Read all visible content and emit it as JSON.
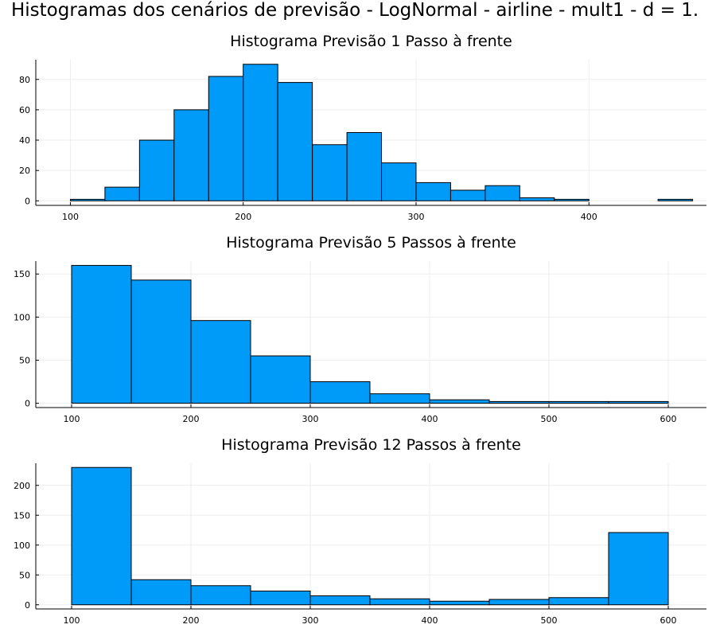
{
  "figure": {
    "suptitle": "Histogramas dos cenários de previsão - LogNormal - airline - mult1 - d = 1."
  },
  "colors": {
    "bar_fill": "#009af9",
    "bar_stroke": "#000000",
    "grid": "#eeeeee",
    "axis": "#000000"
  },
  "chart_data": [
    {
      "type": "bar",
      "title": "Histograma Previsão 1 Passo à frente",
      "xlabel": "",
      "ylabel": "",
      "xlim": [
        80,
        468
      ],
      "ylim": [
        -3,
        93
      ],
      "xticks": [
        100,
        200,
        300,
        400
      ],
      "yticks": [
        0,
        20,
        40,
        60,
        80
      ],
      "grid": true,
      "legend": "none",
      "bin_edges": [
        100,
        120,
        140,
        160,
        180,
        200,
        220,
        240,
        260,
        280,
        300,
        320,
        340,
        360,
        380,
        400,
        420,
        440,
        460
      ],
      "values": [
        1,
        9,
        40,
        60,
        82,
        90,
        78,
        37,
        45,
        25,
        12,
        7,
        10,
        2,
        1,
        0,
        0,
        1
      ]
    },
    {
      "type": "bar",
      "title": "Histograma Previsão 5 Passos à frente",
      "xlabel": "",
      "ylabel": "",
      "xlim": [
        70,
        632
      ],
      "ylim": [
        -5,
        165
      ],
      "xticks": [
        100,
        200,
        300,
        400,
        500,
        600
      ],
      "yticks": [
        0,
        50,
        100,
        150
      ],
      "grid": true,
      "legend": "none",
      "bin_edges": [
        100,
        150,
        200,
        250,
        300,
        350,
        400,
        450,
        500,
        550,
        600
      ],
      "values": [
        160,
        143,
        96,
        55,
        25,
        11,
        4,
        2,
        2,
        2
      ]
    },
    {
      "type": "bar",
      "title": "Histograma Previsão 12 Passos à frente",
      "xlabel": "",
      "ylabel": "",
      "xlim": [
        70,
        632
      ],
      "ylim": [
        -7,
        237
      ],
      "xticks": [
        100,
        200,
        300,
        400,
        500,
        600
      ],
      "yticks": [
        0,
        50,
        100,
        150,
        200
      ],
      "grid": true,
      "legend": "none",
      "bin_edges": [
        100,
        150,
        200,
        250,
        300,
        350,
        400,
        450,
        500,
        550,
        600
      ],
      "values": [
        230,
        42,
        32,
        23,
        15,
        10,
        6,
        9,
        12,
        121
      ]
    }
  ]
}
